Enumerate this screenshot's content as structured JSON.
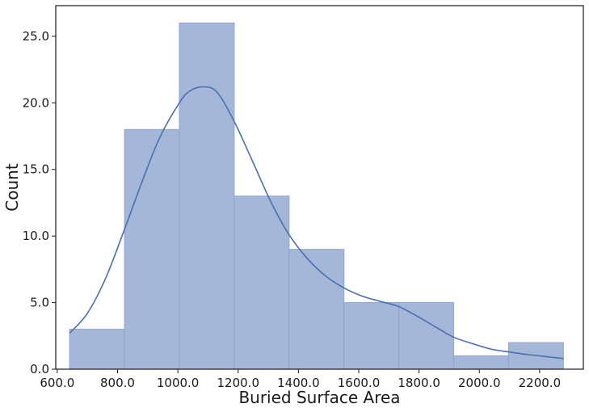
{
  "chart_data": {
    "type": "bar",
    "subtype": "histogram",
    "xlabel": "Buried Surface Area",
    "ylabel": "Count",
    "xlim": [
      595,
      2345
    ],
    "ylim": [
      0,
      27.3
    ],
    "xticks": [
      600,
      800,
      1000,
      1200,
      1400,
      1600,
      1800,
      2000,
      2200
    ],
    "xtick_labels": [
      "600.0",
      "800.0",
      "1000.0",
      "1200.0",
      "1400.0",
      "1600.0",
      "1800.0",
      "2000.0",
      "2200.0"
    ],
    "yticks": [
      0,
      5,
      10,
      15,
      20,
      25
    ],
    "ytick_labels": [
      "0.0",
      "5.0",
      "10.0",
      "15.0",
      "20.0",
      "25.0"
    ],
    "bins": [
      {
        "start": 641,
        "end": 823,
        "count": 3
      },
      {
        "start": 823,
        "end": 1005,
        "count": 18
      },
      {
        "start": 1005,
        "end": 1187,
        "count": 26
      },
      {
        "start": 1187,
        "end": 1369,
        "count": 13
      },
      {
        "start": 1369,
        "end": 1551,
        "count": 9
      },
      {
        "start": 1551,
        "end": 1733,
        "count": 5
      },
      {
        "start": 1733,
        "end": 1915,
        "count": 5
      },
      {
        "start": 1915,
        "end": 2097,
        "count": 1
      },
      {
        "start": 2097,
        "end": 2279,
        "count": 2
      }
    ],
    "kde": {
      "x": [
        641,
        700,
        760,
        823,
        880,
        940,
        1005,
        1040,
        1085,
        1130,
        1187,
        1250,
        1310,
        1369,
        1430,
        1490,
        1551,
        1610,
        1670,
        1733,
        1800,
        1860,
        1915,
        1980,
        2040,
        2097,
        2160,
        2220,
        2279
      ],
      "y": [
        2.7,
        4.2,
        6.8,
        10.5,
        14.0,
        17.4,
        20.0,
        20.9,
        21.2,
        20.8,
        18.6,
        15.5,
        12.5,
        10.1,
        8.3,
        7.0,
        6.1,
        5.5,
        5.1,
        4.7,
        3.9,
        3.1,
        2.4,
        1.9,
        1.5,
        1.3,
        1.1,
        0.95,
        0.8
      ]
    },
    "colors": {
      "bar_fill": "#a5b7d9",
      "bar_edge": "#8ea3d8",
      "kde_line": "#4a6fae"
    },
    "grid": false,
    "legend": "none"
  }
}
